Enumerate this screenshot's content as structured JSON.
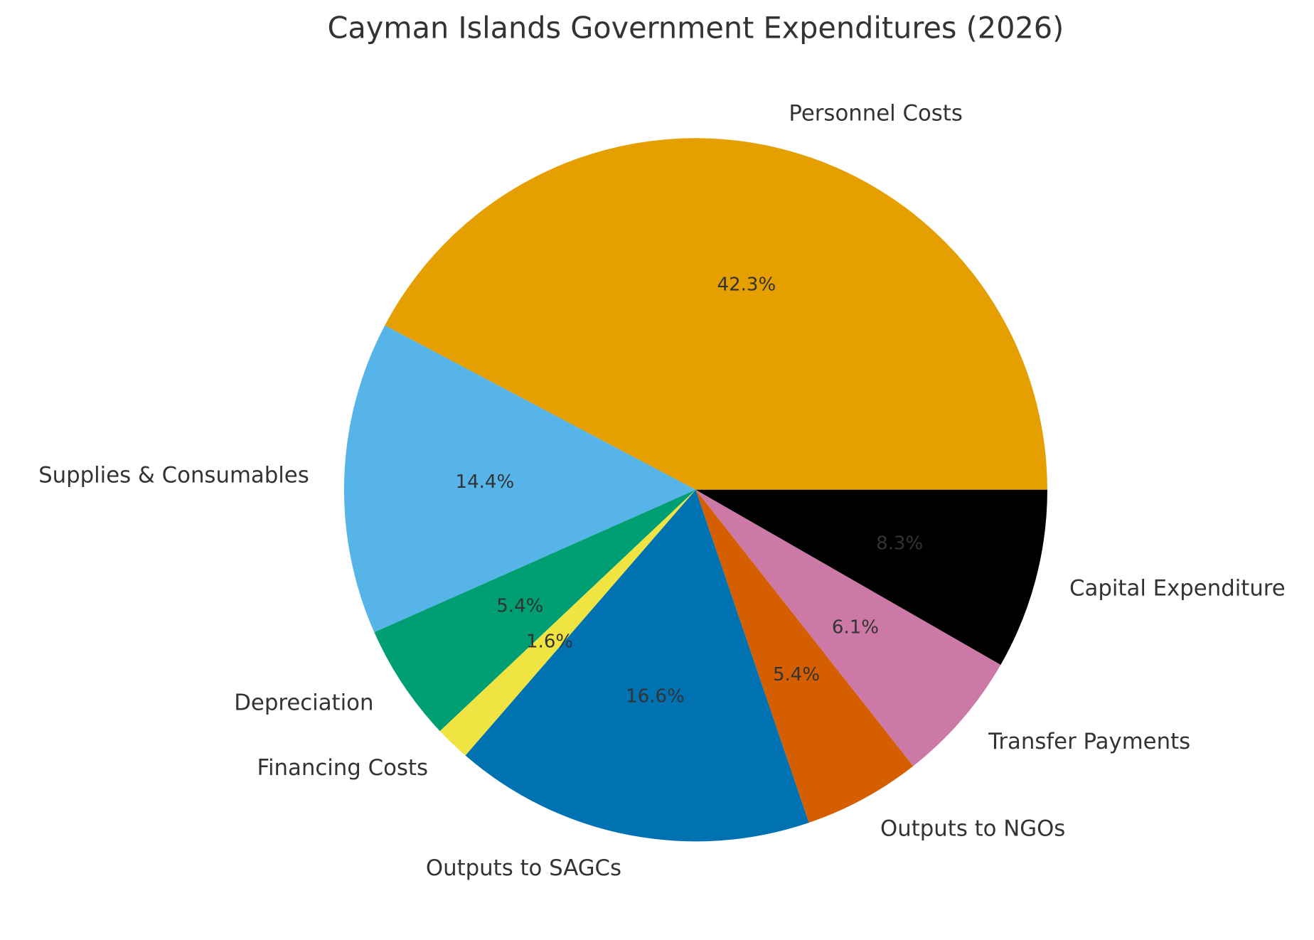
{
  "chart_data": {
    "type": "pie",
    "title": "Cayman Islands Government Expenditures (2026)",
    "start_angle_deg": 0,
    "direction": "counterclockwise",
    "slices": [
      {
        "label": "Personnel Costs",
        "value": 42.3,
        "pct_label": "42.3%",
        "color": "#E69F00"
      },
      {
        "label": "Supplies & Consumables",
        "value": 14.4,
        "pct_label": "14.4%",
        "color": "#56B4E9"
      },
      {
        "label": "Depreciation",
        "value": 5.4,
        "pct_label": "5.4%",
        "color": "#009E73"
      },
      {
        "label": "Financing Costs",
        "value": 1.6,
        "pct_label": "1.6%",
        "color": "#F0E442"
      },
      {
        "label": "Outputs to SAGCs",
        "value": 16.6,
        "pct_label": "16.6%",
        "color": "#0072B2"
      },
      {
        "label": "Outputs to NGOs",
        "value": 5.4,
        "pct_label": "5.4%",
        "color": "#D55E00"
      },
      {
        "label": "Transfer Payments",
        "value": 6.1,
        "pct_label": "6.1%",
        "color": "#CC79A7"
      },
      {
        "label": "Capital Expenditure",
        "value": 8.3,
        "pct_label": "8.3%",
        "color": "#000000"
      }
    ]
  }
}
